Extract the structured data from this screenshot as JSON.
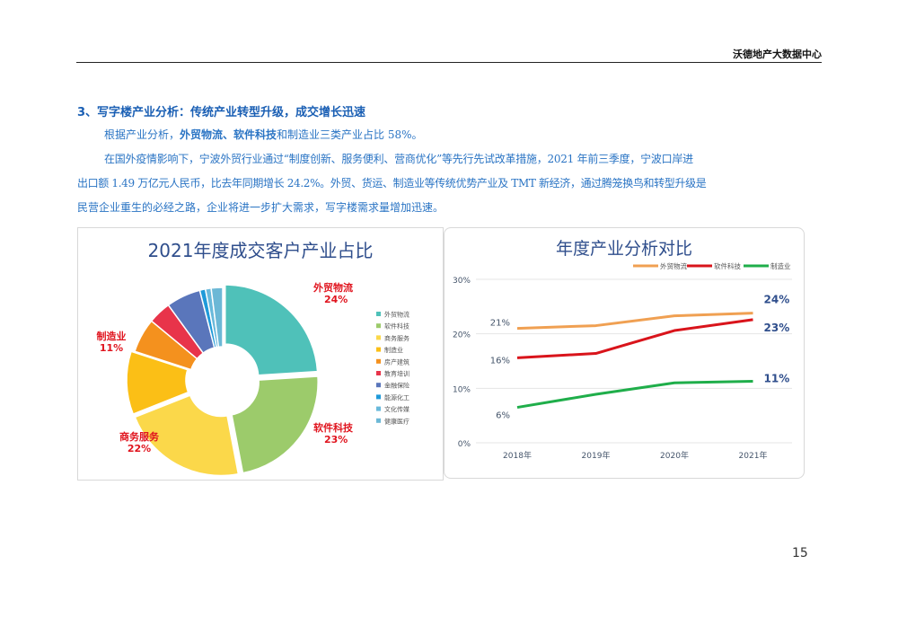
{
  "header": {
    "org": "沃德地产大数据中心"
  },
  "section": {
    "title": "3、写字楼产业分析：传统产业转型升级，成交增长迅速",
    "p1": {
      "a": "根据产业分析，",
      "b": "外贸物流、软件科技",
      "c": "和制造业三类产业占比 58%。"
    },
    "p2_line1": "在国外疫情影响下，宁波外贸行业通过“制度创新、服务便利、营商优化”等先行先试改革措施，2021 年前三季度，宁波口岸进",
    "p2_line2": "出口额 1.49 万亿元人民币，比去年同期增长 24.2%。外贸、货运、制造业等传统优势产业及 TMT 新经济，通过腾笼换鸟和转型升级是",
    "p2_line3": "民营企业重生的必经之路，企业将进一步扩大需求，写字楼需求量增加迅速。"
  },
  "page_number": "15",
  "chart_data": [
    {
      "type": "pie",
      "title": "2021年度成交客户产业占比",
      "categories": [
        "外贸物流",
        "软件科技",
        "商务服务",
        "制造业",
        "房产建筑",
        "教育培训",
        "金融保险",
        "能源化工",
        "文化传媒",
        "健康医疗"
      ],
      "values": [
        24,
        23,
        22,
        11,
        6,
        4,
        6,
        1,
        1,
        2
      ],
      "colors": [
        "#4fc1b9",
        "#9ccb6b",
        "#fbd84a",
        "#fbbf16",
        "#f4911e",
        "#e8344a",
        "#5a76bb",
        "#1f9ad9",
        "#69b9db",
        "#6cb8d6"
      ],
      "data_labels": [
        {
          "name": "外贸物流",
          "value": "24%"
        },
        {
          "name": "软件科技",
          "value": "23%"
        },
        {
          "name": "商务服务",
          "value": "22%"
        },
        {
          "name": "制造业",
          "value": "11%"
        }
      ],
      "legend": "right"
    },
    {
      "type": "line",
      "title": "年度产业分析对比",
      "categories": [
        "2018年",
        "2019年",
        "2020年",
        "2021年"
      ],
      "ylim": [
        0,
        30
      ],
      "yticks": [
        "0%",
        "10%",
        "20%",
        "30%"
      ],
      "series": [
        {
          "name": "外贸物流",
          "color": "#f0a052",
          "values": [
            21,
            21.5,
            23.3,
            23.8
          ],
          "start_label": "21%",
          "end_label": "24%"
        },
        {
          "name": "软件科技",
          "color": "#d9141b",
          "values": [
            15.6,
            16.4,
            20.6,
            22.6
          ],
          "start_label": "16%",
          "end_label": "23%"
        },
        {
          "name": "制造业",
          "color": "#1fae4a",
          "values": [
            6.5,
            8.9,
            11,
            11.3
          ],
          "start_label": "6%",
          "end_label": "11%"
        }
      ],
      "legend": "top-right",
      "grid": true
    }
  ]
}
